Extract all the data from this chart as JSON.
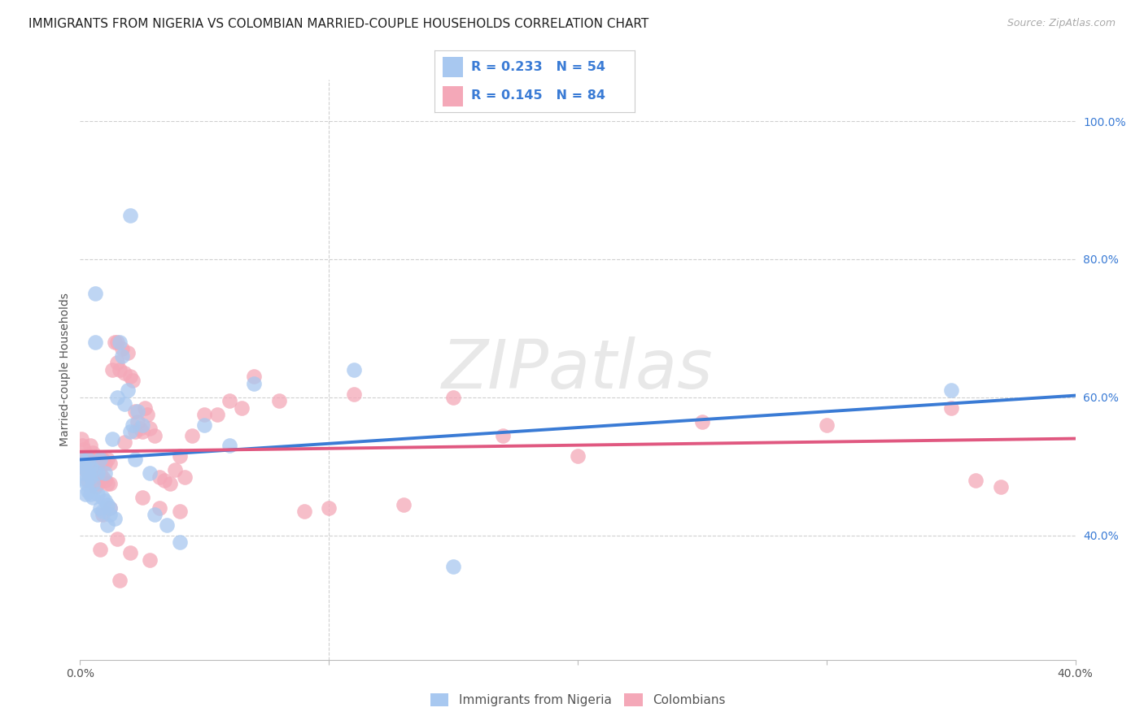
{
  "title": "IMMIGRANTS FROM NIGERIA VS COLOMBIAN MARRIED-COUPLE HOUSEHOLDS CORRELATION CHART",
  "source": "Source: ZipAtlas.com",
  "ylabel": "Married-couple Households",
  "xlim": [
    0.0,
    0.4
  ],
  "ylim": [
    0.22,
    1.06
  ],
  "xticks": [
    0.0,
    0.1,
    0.2,
    0.3,
    0.4
  ],
  "xtick_labels": [
    "0.0%",
    "",
    "",
    "",
    "40.0%"
  ],
  "ytick_vals": [
    0.4,
    0.6,
    0.8,
    1.0
  ],
  "ytick_labels": [
    "40.0%",
    "60.0%",
    "80.0%",
    "100.0%"
  ],
  "nigeria_R": 0.233,
  "nigeria_N": 54,
  "colombia_R": 0.145,
  "colombia_N": 84,
  "nigeria_color": "#a8c8f0",
  "colombia_color": "#f4a8b8",
  "nigeria_line_color": "#3a7bd5",
  "colombia_line_color": "#e05880",
  "text_color": "#3a7bd5",
  "watermark": "ZIPatlas",
  "background": "#ffffff",
  "grid_color": "#d0d0d0",
  "nigeria_scatter_x": [
    0.0005,
    0.001,
    0.001,
    0.0015,
    0.002,
    0.002,
    0.0025,
    0.003,
    0.003,
    0.003,
    0.004,
    0.004,
    0.004,
    0.005,
    0.005,
    0.005,
    0.006,
    0.006,
    0.007,
    0.007,
    0.007,
    0.008,
    0.008,
    0.009,
    0.009,
    0.01,
    0.01,
    0.011,
    0.011,
    0.012,
    0.012,
    0.013,
    0.014,
    0.015,
    0.016,
    0.017,
    0.018,
    0.019,
    0.02,
    0.021,
    0.022,
    0.023,
    0.025,
    0.028,
    0.03,
    0.035,
    0.04,
    0.05,
    0.06,
    0.07,
    0.11,
    0.15,
    0.02,
    0.35
  ],
  "nigeria_scatter_y": [
    0.51,
    0.5,
    0.49,
    0.505,
    0.48,
    0.46,
    0.475,
    0.51,
    0.49,
    0.465,
    0.5,
    0.485,
    0.46,
    0.495,
    0.475,
    0.455,
    0.68,
    0.75,
    0.46,
    0.49,
    0.43,
    0.51,
    0.44,
    0.455,
    0.435,
    0.45,
    0.49,
    0.445,
    0.415,
    0.44,
    0.43,
    0.54,
    0.425,
    0.6,
    0.68,
    0.66,
    0.59,
    0.61,
    0.55,
    0.56,
    0.51,
    0.58,
    0.56,
    0.49,
    0.43,
    0.415,
    0.39,
    0.56,
    0.53,
    0.62,
    0.64,
    0.355,
    0.863,
    0.61
  ],
  "colombia_scatter_x": [
    0.0005,
    0.001,
    0.001,
    0.0015,
    0.002,
    0.002,
    0.003,
    0.003,
    0.003,
    0.004,
    0.004,
    0.005,
    0.005,
    0.005,
    0.006,
    0.006,
    0.006,
    0.007,
    0.007,
    0.008,
    0.008,
    0.009,
    0.009,
    0.01,
    0.01,
    0.011,
    0.011,
    0.012,
    0.012,
    0.013,
    0.014,
    0.015,
    0.015,
    0.016,
    0.017,
    0.018,
    0.019,
    0.02,
    0.021,
    0.022,
    0.023,
    0.024,
    0.025,
    0.026,
    0.027,
    0.028,
    0.03,
    0.032,
    0.034,
    0.036,
    0.038,
    0.04,
    0.042,
    0.045,
    0.05,
    0.055,
    0.06,
    0.065,
    0.07,
    0.08,
    0.09,
    0.1,
    0.11,
    0.13,
    0.15,
    0.17,
    0.2,
    0.25,
    0.3,
    0.35,
    0.36,
    0.37,
    0.025,
    0.032,
    0.04,
    0.015,
    0.022,
    0.018,
    0.028,
    0.02,
    0.012,
    0.009,
    0.016,
    0.008
  ],
  "colombia_scatter_y": [
    0.54,
    0.53,
    0.51,
    0.525,
    0.515,
    0.495,
    0.51,
    0.495,
    0.48,
    0.53,
    0.51,
    0.52,
    0.5,
    0.48,
    0.51,
    0.49,
    0.47,
    0.505,
    0.475,
    0.51,
    0.49,
    0.485,
    0.51,
    0.48,
    0.505,
    0.51,
    0.475,
    0.505,
    0.475,
    0.64,
    0.68,
    0.68,
    0.65,
    0.64,
    0.67,
    0.635,
    0.665,
    0.63,
    0.625,
    0.58,
    0.565,
    0.555,
    0.55,
    0.585,
    0.575,
    0.555,
    0.545,
    0.485,
    0.48,
    0.475,
    0.495,
    0.515,
    0.485,
    0.545,
    0.575,
    0.575,
    0.595,
    0.585,
    0.63,
    0.595,
    0.435,
    0.44,
    0.605,
    0.445,
    0.6,
    0.545,
    0.515,
    0.565,
    0.56,
    0.585,
    0.48,
    0.47,
    0.455,
    0.44,
    0.435,
    0.395,
    0.55,
    0.535,
    0.365,
    0.375,
    0.44,
    0.43,
    0.335,
    0.38
  ]
}
